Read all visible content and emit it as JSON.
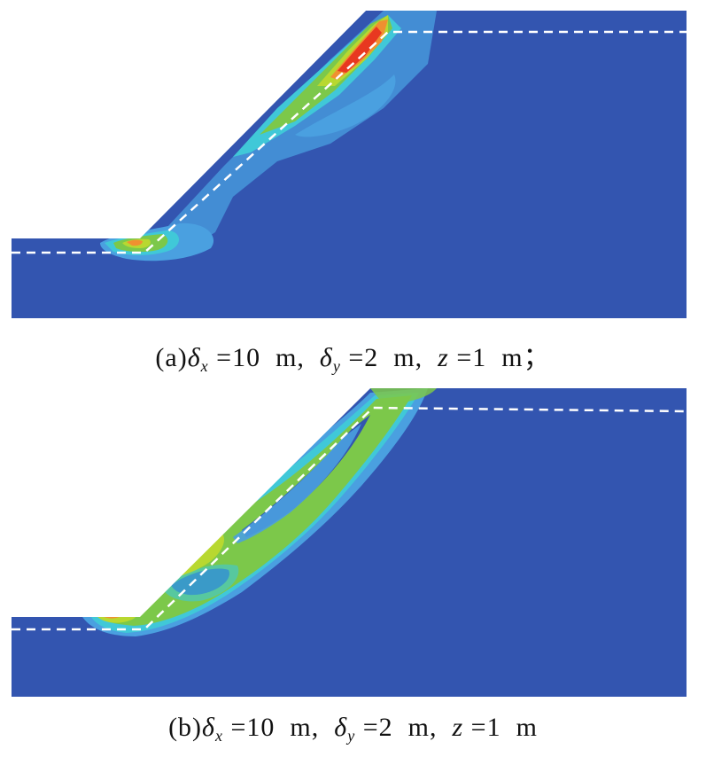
{
  "panel_a": {
    "caption": {
      "label": "(a)",
      "dx_sym": "δ",
      "dx_sub": "x",
      "dx_val": " =10  m,  ",
      "dy_sym": "δ",
      "dy_sub": "y",
      "dy_val": " =2  m,  ",
      "z_sym": "z",
      "z_val": " =1  m；"
    }
  },
  "panel_b": {
    "caption": {
      "label": "(b)",
      "dx_sym": "δ",
      "dx_sub": "x",
      "dx_val": " =10  m,  ",
      "dy_sym": "δ",
      "dy_sub": "y",
      "dy_val": " =2  m,  ",
      "z_sym": "z",
      "z_val": " =1  m"
    }
  },
  "colors": {
    "background_blue": "#3355b0",
    "light_blue": "#4aa0e0",
    "cyan": "#40c8d8",
    "green": "#7cc84a",
    "yellow_green": "#b8d830",
    "orange": "#f09030",
    "red": "#e83820",
    "dash_line": "#ffffff"
  }
}
